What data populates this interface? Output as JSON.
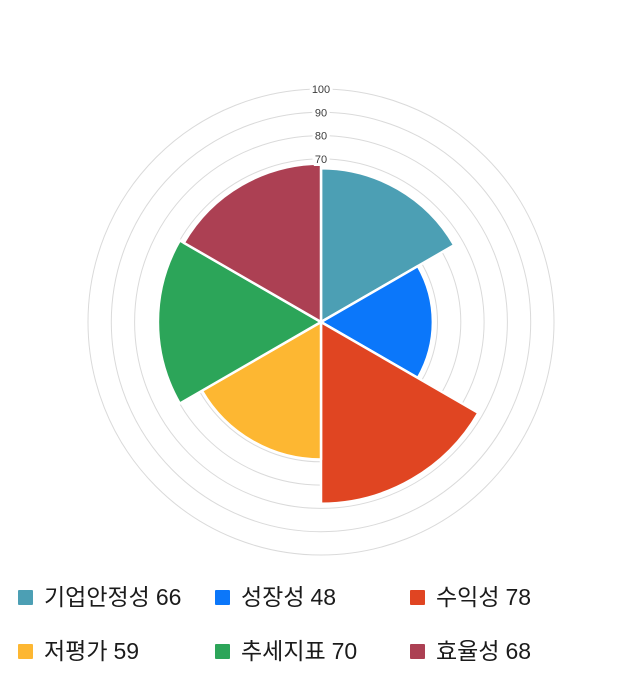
{
  "chart_data": {
    "type": "polar-area",
    "categories": [
      "기업안정성",
      "성장성",
      "수익성",
      "저평가",
      "추세지표",
      "효율성"
    ],
    "values": [
      66,
      48,
      78,
      59,
      70,
      68
    ],
    "series_colors": [
      "#4C9FB4",
      "#0B77FA",
      "#E04522",
      "#FDB732",
      "#2CA559",
      "#AC4053"
    ],
    "start_angle_deg": 0,
    "direction": "clockwise",
    "sector_angle_deg": 60,
    "axis": {
      "min": 0,
      "max": 100,
      "ring_interval": 10,
      "tick_labels": [
        70,
        80,
        90,
        100
      ],
      "grid_color": "#dadada",
      "tick_label_color": "#3c3c3c"
    },
    "sector_border_color": "#ffffff",
    "legend_position": "bottom"
  },
  "legend": {
    "items": [
      {
        "label": "기업안정성",
        "value": 66,
        "color": "#4C9FB4"
      },
      {
        "label": "성장성",
        "value": 48,
        "color": "#0B77FA"
      },
      {
        "label": "수익성",
        "value": 78,
        "color": "#E04522"
      },
      {
        "label": "저평가",
        "value": 59,
        "color": "#FDB732"
      },
      {
        "label": "추세지표",
        "value": 70,
        "color": "#2CA559"
      },
      {
        "label": "효율성",
        "value": 68,
        "color": "#AC4053"
      }
    ]
  }
}
